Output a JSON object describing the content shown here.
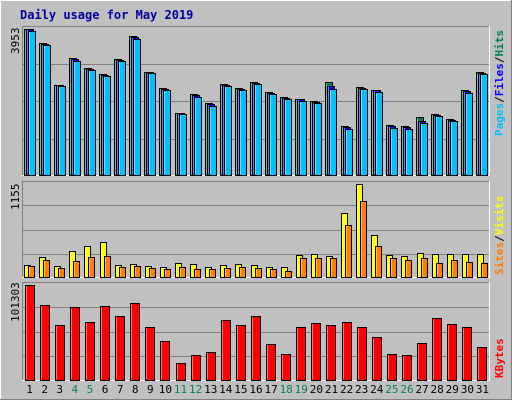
{
  "title": "Daily usage for May 2019",
  "colors": {
    "background": "#c0c0c0",
    "title": "#0000a0",
    "hits": "#00805c",
    "files": "#0000ff",
    "pages": "#00c0ff",
    "visits": "#ffff00",
    "sites": "#ff8000",
    "kbytes": "#ff0000",
    "weekday_label": "#000000",
    "weekend_label": "#00805c"
  },
  "axis_labels": {
    "top": "3953",
    "middle": "1155",
    "bottom": "101303"
  },
  "legend": {
    "pages": "Pages",
    "files": "Files",
    "hits": "Hits",
    "sites": "Sites",
    "visits": "Visits",
    "kbytes": "KBytes",
    "separator": "/"
  },
  "chart_data": [
    {
      "type": "bar",
      "panel": "top",
      "ylim": [
        0,
        3953
      ],
      "categories": [
        "1",
        "2",
        "3",
        "4",
        "5",
        "6",
        "7",
        "8",
        "9",
        "10",
        "11",
        "12",
        "13",
        "14",
        "15",
        "16",
        "17",
        "18",
        "19",
        "20",
        "21",
        "22",
        "23",
        "24",
        "25",
        "26",
        "27",
        "28",
        "29",
        "30",
        "31"
      ],
      "weekend_days": [
        4,
        5,
        11,
        12,
        18,
        19,
        25,
        26
      ],
      "series": [
        {
          "name": "Hits",
          "values": [
            3953,
            3580,
            2450,
            3170,
            2900,
            2730,
            3140,
            3750,
            2800,
            2360,
            1690,
            2180,
            1940,
            2460,
            2350,
            2520,
            2240,
            2110,
            2070,
            2010,
            2530,
            1330,
            2380,
            2310,
            1350,
            1330,
            1580,
            1640,
            1510,
            2290,
            2790
          ]
        },
        {
          "name": "Files",
          "values": [
            3940,
            3560,
            2430,
            3150,
            2880,
            2710,
            3120,
            3730,
            2780,
            2340,
            1670,
            2160,
            1920,
            2440,
            2330,
            2500,
            2220,
            2090,
            2050,
            1990,
            2400,
            1310,
            2360,
            2290,
            1320,
            1300,
            1460,
            1620,
            1490,
            2270,
            2770
          ]
        },
        {
          "name": "Pages",
          "values": [
            3900,
            3520,
            2400,
            3100,
            2840,
            2670,
            3090,
            3690,
            2750,
            2310,
            1640,
            2120,
            1880,
            2400,
            2290,
            2460,
            2180,
            2050,
            2000,
            1950,
            2340,
            1250,
            2320,
            2250,
            1280,
            1250,
            1420,
            1590,
            1450,
            2220,
            2730
          ]
        }
      ]
    },
    {
      "type": "bar",
      "panel": "middle",
      "ylim": [
        0,
        1155
      ],
      "categories": [
        "1",
        "2",
        "3",
        "4",
        "5",
        "6",
        "7",
        "8",
        "9",
        "10",
        "11",
        "12",
        "13",
        "14",
        "15",
        "16",
        "17",
        "18",
        "19",
        "20",
        "21",
        "22",
        "23",
        "24",
        "25",
        "26",
        "27",
        "28",
        "29",
        "30",
        "31"
      ],
      "series": [
        {
          "name": "Visits",
          "values": [
            150,
            250,
            140,
            320,
            380,
            440,
            150,
            160,
            140,
            130,
            170,
            160,
            130,
            150,
            160,
            150,
            130,
            130,
            270,
            280,
            260,
            800,
            1155,
            520,
            270,
            260,
            300,
            280,
            285,
            285,
            280
          ]
        },
        {
          "name": "Sites",
          "values": [
            135,
            215,
            115,
            200,
            245,
            255,
            125,
            135,
            110,
            100,
            120,
            105,
            100,
            110,
            125,
            110,
            95,
            70,
            230,
            240,
            235,
            650,
            950,
            380,
            230,
            215,
            230,
            170,
            210,
            190,
            170
          ]
        }
      ]
    },
    {
      "type": "bar",
      "panel": "bottom",
      "ylim": [
        0,
        101303
      ],
      "categories": [
        "1",
        "2",
        "3",
        "4",
        "5",
        "6",
        "7",
        "8",
        "9",
        "10",
        "11",
        "12",
        "13",
        "14",
        "15",
        "16",
        "17",
        "18",
        "19",
        "20",
        "21",
        "22",
        "23",
        "24",
        "25",
        "26",
        "27",
        "28",
        "29",
        "30",
        "31"
      ],
      "series": [
        {
          "name": "KBytes",
          "values": [
            101303,
            80000,
            59000,
            77500,
            62000,
            78500,
            68000,
            82000,
            56000,
            42000,
            18000,
            27000,
            29500,
            64000,
            58500,
            68000,
            38000,
            27500,
            56000,
            61000,
            59000,
            62000,
            56000,
            46000,
            28000,
            26500,
            39000,
            66000,
            59500,
            56000,
            35000
          ]
        }
      ]
    }
  ]
}
